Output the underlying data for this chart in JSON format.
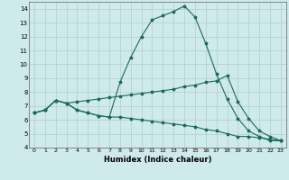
{
  "xlabel": "Humidex (Indice chaleur)",
  "xlim": [
    -0.5,
    23.5
  ],
  "ylim": [
    4,
    14.5
  ],
  "yticks": [
    4,
    5,
    6,
    7,
    8,
    9,
    10,
    11,
    12,
    13,
    14
  ],
  "xticks": [
    0,
    1,
    2,
    3,
    4,
    5,
    6,
    7,
    8,
    9,
    10,
    11,
    12,
    13,
    14,
    15,
    16,
    17,
    18,
    19,
    20,
    21,
    22,
    23
  ],
  "bg_color": "#ceeaea",
  "line_color": "#1a6b5a",
  "grid_color": "#b0cccc",
  "line1_x": [
    0,
    1,
    2,
    3,
    4,
    5,
    6,
    7,
    8,
    9,
    10,
    11,
    12,
    13,
    14,
    15,
    16,
    17,
    18,
    19,
    20,
    21,
    22,
    23
  ],
  "line1_y": [
    6.5,
    6.7,
    7.4,
    7.2,
    6.7,
    6.5,
    6.3,
    6.2,
    8.7,
    10.5,
    12.0,
    13.2,
    13.5,
    13.8,
    14.2,
    13.4,
    11.5,
    9.3,
    7.5,
    6.1,
    5.2,
    4.8,
    4.5,
    4.5
  ],
  "line2_x": [
    0,
    1,
    2,
    3,
    4,
    5,
    6,
    7,
    8,
    9,
    10,
    11,
    12,
    13,
    14,
    15,
    16,
    17,
    18,
    19,
    20,
    21,
    22,
    23
  ],
  "line2_y": [
    6.5,
    6.7,
    7.4,
    7.2,
    7.3,
    7.4,
    7.5,
    7.6,
    7.7,
    7.8,
    7.9,
    8.0,
    8.1,
    8.2,
    8.4,
    8.5,
    8.7,
    8.8,
    9.2,
    7.3,
    6.1,
    5.2,
    4.8,
    4.5
  ],
  "line3_x": [
    0,
    1,
    2,
    3,
    4,
    5,
    6,
    7,
    8,
    9,
    10,
    11,
    12,
    13,
    14,
    15,
    16,
    17,
    18,
    19,
    20,
    21,
    22,
    23
  ],
  "line3_y": [
    6.5,
    6.7,
    7.4,
    7.2,
    6.7,
    6.5,
    6.3,
    6.2,
    6.2,
    6.1,
    6.0,
    5.9,
    5.8,
    5.7,
    5.6,
    5.5,
    5.3,
    5.2,
    5.0,
    4.8,
    4.8,
    4.7,
    4.6,
    4.5
  ]
}
